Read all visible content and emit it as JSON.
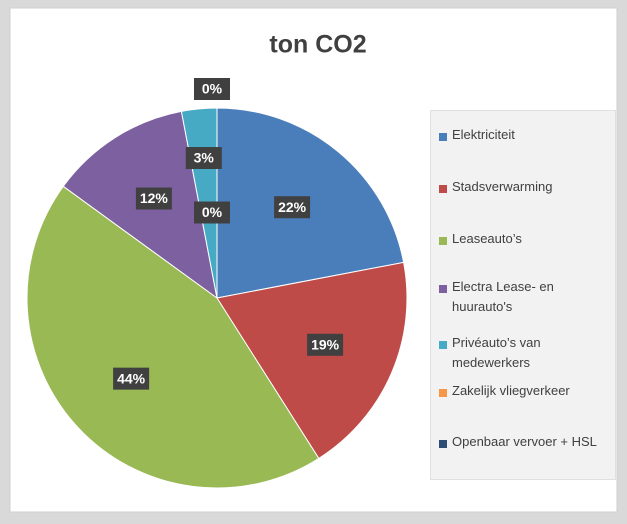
{
  "chart_data": {
    "type": "pie",
    "title": "ton CO2",
    "categories": [
      "Elektriciteit",
      "Stadsverwarming",
      "Leaseauto’s",
      "Electra Lease- en huurauto's",
      "Privéauto’s van medewerkers",
      "Zakelijk vliegverkeer",
      "Openbaar vervoer + HSL"
    ],
    "values": [
      22,
      19,
      44,
      12,
      3,
      0,
      0
    ],
    "value_labels": [
      "22%",
      "19%",
      "44%",
      "12%",
      "3%",
      "0%",
      "0%"
    ],
    "colors": [
      "#4a7ebb",
      "#be4b48",
      "#98b954",
      "#7d60a0",
      "#46aac5",
      "#f79646",
      "#2c4d75"
    ],
    "legend": "right"
  }
}
